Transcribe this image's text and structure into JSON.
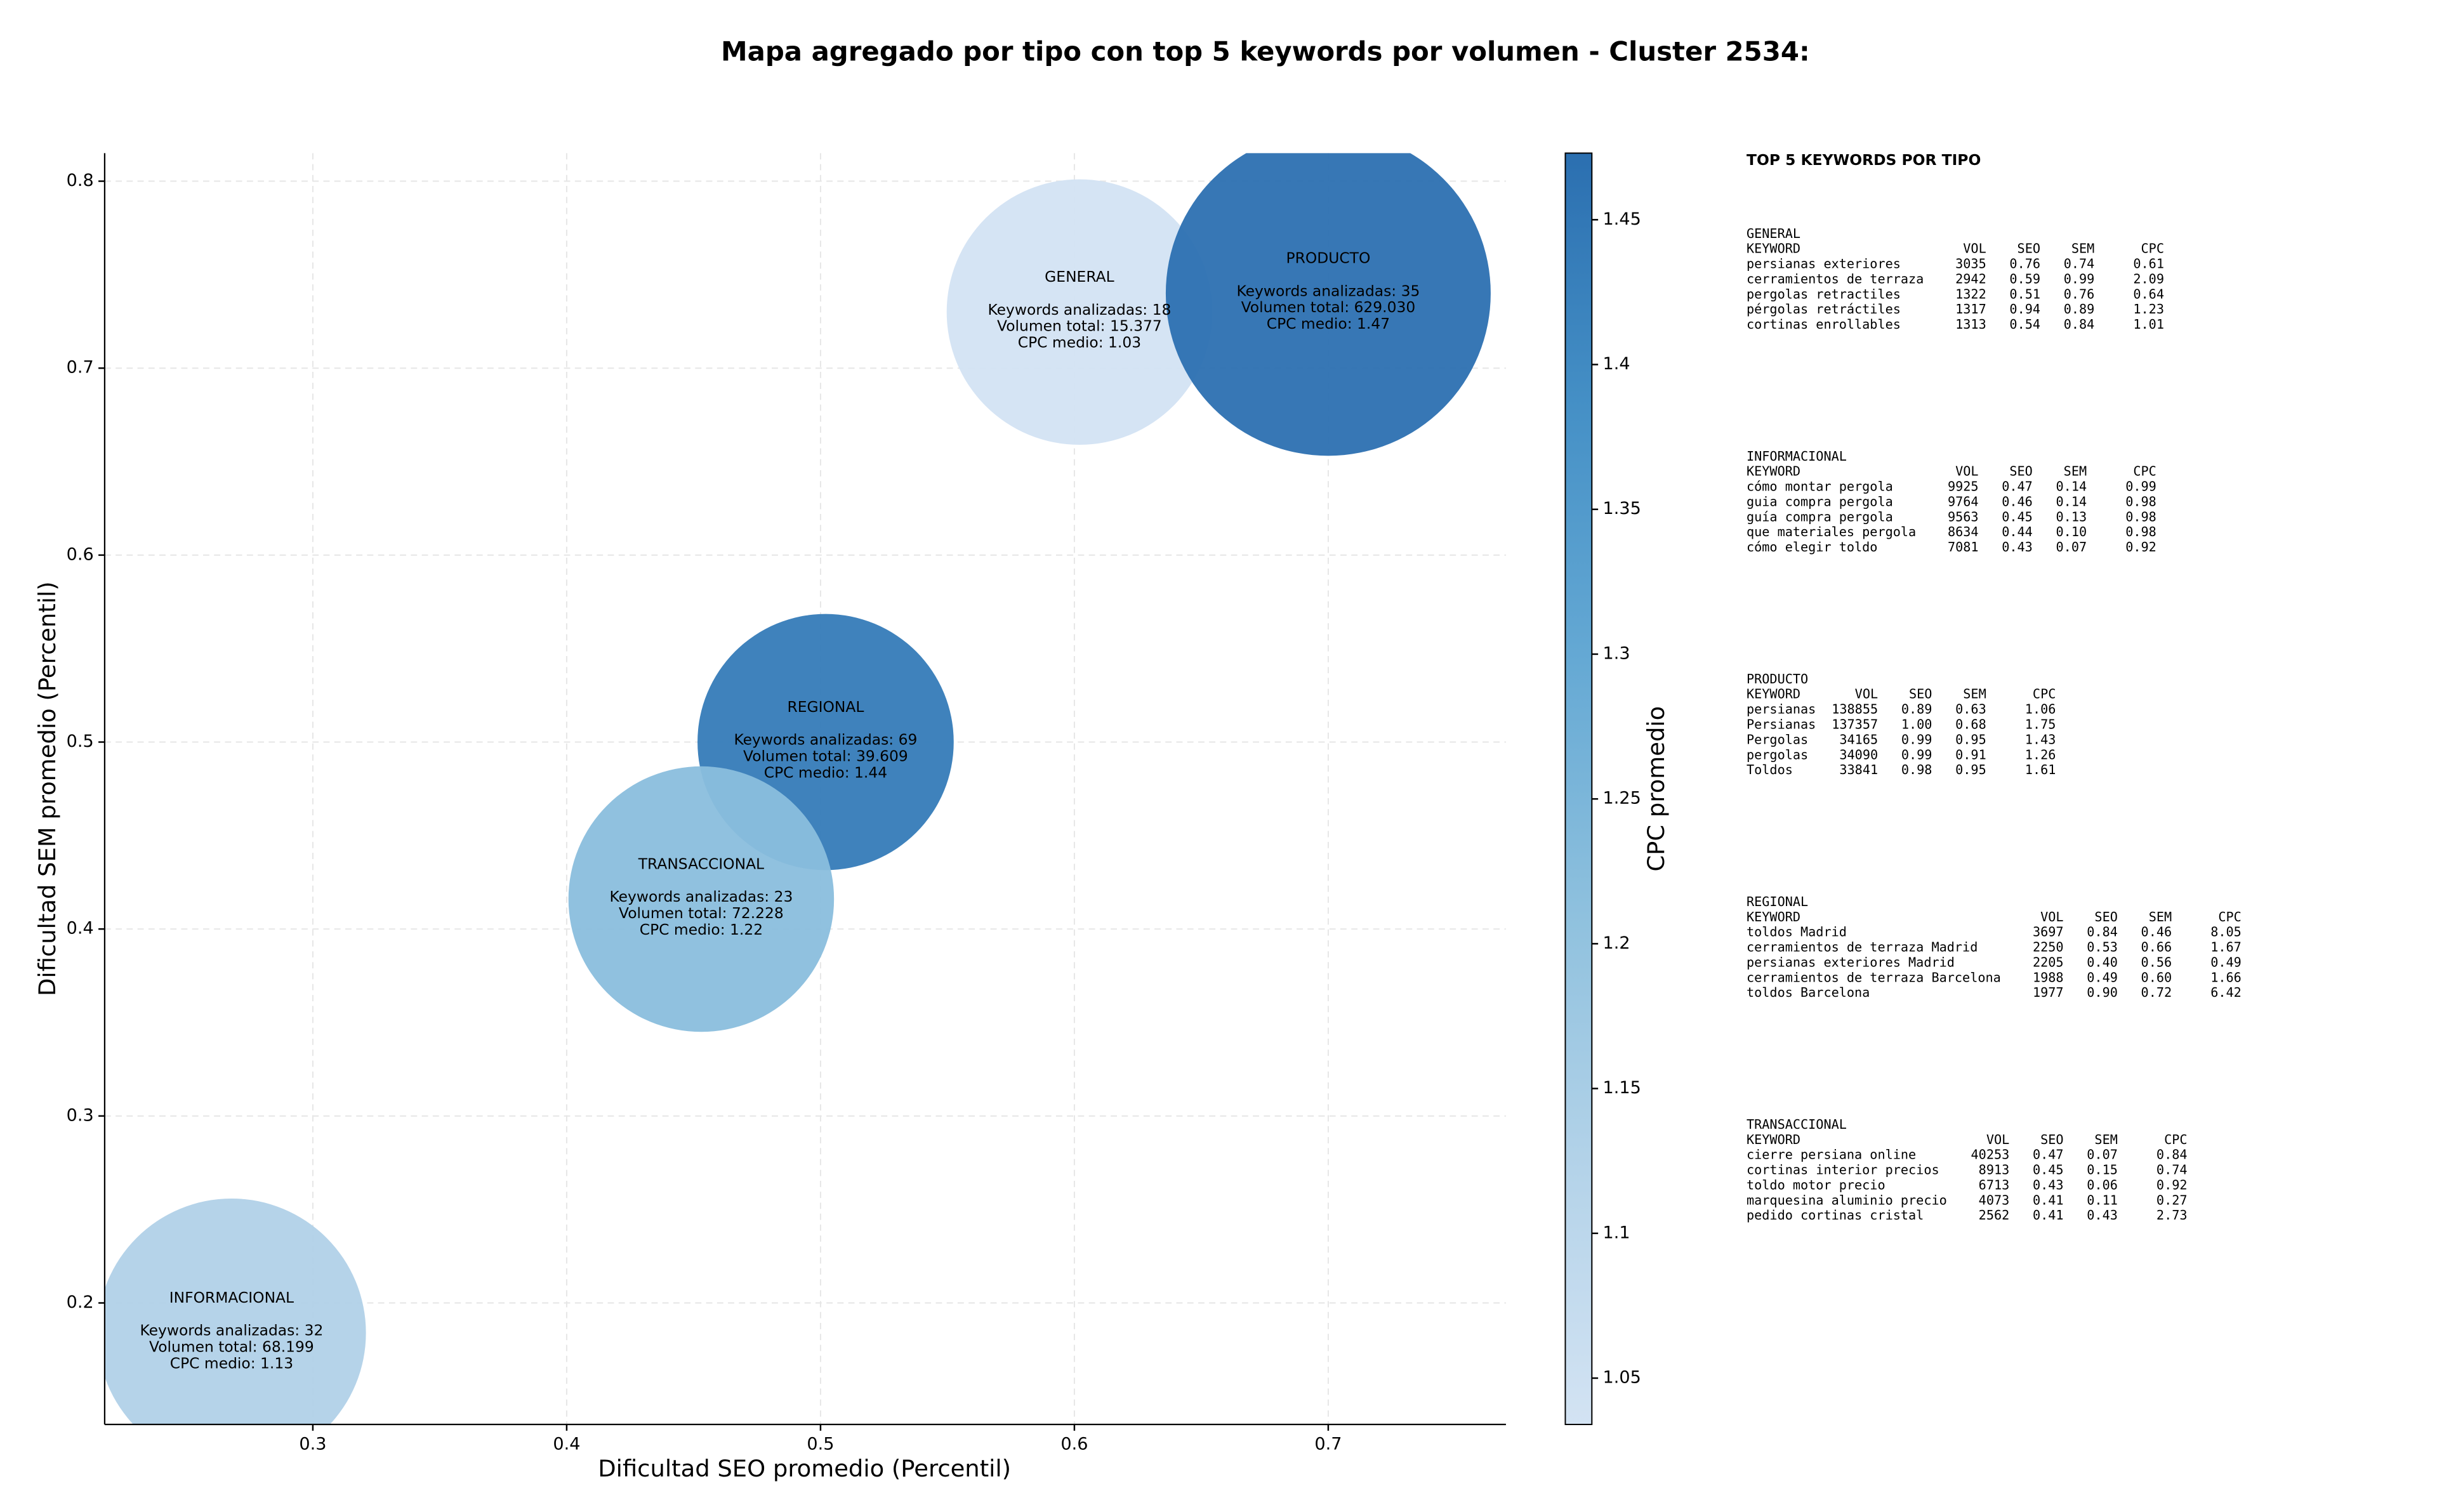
{
  "chart_data": {
    "type": "bubble",
    "title": "Mapa agregado por tipo con top 5 keywords por volumen - Cluster 2534:",
    "xlabel": "Dificultad SEO promedio (Percentil)",
    "ylabel": "Dificultad SEM promedio (Percentil)",
    "xlim": [
      0.218,
      0.77
    ],
    "ylim": [
      0.135,
      0.815
    ],
    "xticks": [
      0.3,
      0.4,
      0.5,
      0.6,
      0.7
    ],
    "yticks": [
      0.2,
      0.3,
      0.4,
      0.5,
      0.6,
      0.7,
      0.8
    ],
    "grid": true,
    "colorbar": {
      "label": "CPC promedio",
      "lim": [
        1.034,
        1.473
      ],
      "ticks": [
        1.05,
        1.1,
        1.15,
        1.2,
        1.25,
        1.3,
        1.35,
        1.4,
        1.45
      ],
      "colormap": [
        "#d3e3f3",
        "#b4d3e9",
        "#8fc1de",
        "#65a9d4",
        "#4590c6",
        "#2b6fb0"
      ]
    },
    "points": [
      {
        "name": "GENERAL",
        "x": 0.602,
        "y": 0.73,
        "size": 85,
        "cpc": 1.03,
        "lines": [
          "Keywords analizadas: 18",
          "Volumen total: 15.377",
          "CPC medio: 1.03"
        ]
      },
      {
        "name": "PRODUCTO",
        "x": 0.7,
        "y": 0.74,
        "size": 104,
        "cpc": 1.47,
        "lines": [
          "Keywords analizadas: 35",
          "Volumen total: 629.030",
          "CPC medio: 1.47"
        ]
      },
      {
        "name": "REGIONAL",
        "x": 0.502,
        "y": 0.5,
        "size": 82,
        "cpc": 1.44,
        "lines": [
          "Keywords analizadas: 69",
          "Volumen total: 39.609",
          "CPC medio: 1.44"
        ]
      },
      {
        "name": "TRANSACCIONAL",
        "x": 0.453,
        "y": 0.416,
        "size": 85,
        "cpc": 1.22,
        "lines": [
          "Keywords analizadas: 23",
          "Volumen total: 72.228",
          "CPC medio: 1.22"
        ]
      },
      {
        "name": "INFORMACIONAL",
        "x": 0.268,
        "y": 0.184,
        "size": 86,
        "cpc": 1.13,
        "lines": [
          "Keywords analizadas: 32",
          "Volumen total: 68.199",
          "CPC medio: 1.13"
        ]
      }
    ],
    "table": {
      "title": "TOP 5 KEYWORDS POR TIPO",
      "header": [
        "KEYWORD",
        "VOL",
        "SEO",
        "SEM",
        "CPC"
      ],
      "groups": [
        {
          "name": "GENERAL",
          "rows": [
            [
              "persianas exteriores",
              "3035",
              "0.76",
              "0.74",
              "0.61"
            ],
            [
              "cerramientos de terraza",
              "2942",
              "0.59",
              "0.99",
              "2.09"
            ],
            [
              "pergolas retractiles",
              "1322",
              "0.51",
              "0.76",
              "0.64"
            ],
            [
              "pérgolas retráctiles",
              "1317",
              "0.94",
              "0.89",
              "1.23"
            ],
            [
              "cortinas enrollables",
              "1313",
              "0.54",
              "0.84",
              "1.01"
            ]
          ]
        },
        {
          "name": "INFORMACIONAL",
          "rows": [
            [
              "cómo montar pergola",
              "9925",
              "0.47",
              "0.14",
              "0.99"
            ],
            [
              "guia compra pergola",
              "9764",
              "0.46",
              "0.14",
              "0.98"
            ],
            [
              "guía compra pergola",
              "9563",
              "0.45",
              "0.13",
              "0.98"
            ],
            [
              "que materiales pergola",
              "8634",
              "0.44",
              "0.10",
              "0.98"
            ],
            [
              "cómo elegir toldo",
              "7081",
              "0.43",
              "0.07",
              "0.92"
            ]
          ]
        },
        {
          "name": "PRODUCTO",
          "rows": [
            [
              "persianas",
              "138855",
              "0.89",
              "0.63",
              "1.06"
            ],
            [
              "Persianas",
              "137357",
              "1.00",
              "0.68",
              "1.75"
            ],
            [
              "Pergolas",
              "34165",
              "0.99",
              "0.95",
              "1.43"
            ],
            [
              "pergolas",
              "34090",
              "0.99",
              "0.91",
              "1.26"
            ],
            [
              "Toldos",
              "33841",
              "0.98",
              "0.95",
              "1.61"
            ]
          ]
        },
        {
          "name": "REGIONAL",
          "rows": [
            [
              "toldos Madrid",
              "3697",
              "0.84",
              "0.46",
              "8.05"
            ],
            [
              "cerramientos de terraza Madrid",
              "2250",
              "0.53",
              "0.66",
              "1.67"
            ],
            [
              "persianas exteriores Madrid",
              "2205",
              "0.40",
              "0.56",
              "0.49"
            ],
            [
              "cerramientos de terraza Barcelona",
              "1988",
              "0.49",
              "0.60",
              "1.66"
            ],
            [
              "toldos Barcelona",
              "1977",
              "0.90",
              "0.72",
              "6.42"
            ]
          ]
        },
        {
          "name": "TRANSACCIONAL",
          "rows": [
            [
              "cierre persiana online",
              "40253",
              "0.47",
              "0.07",
              "0.84"
            ],
            [
              "cortinas interior precios",
              "8913",
              "0.45",
              "0.15",
              "0.74"
            ],
            [
              "toldo motor precio",
              "6713",
              "0.43",
              "0.06",
              "0.92"
            ],
            [
              "marquesina aluminio precio",
              "4073",
              "0.41",
              "0.11",
              "0.27"
            ],
            [
              "pedido cortinas cristal",
              "2562",
              "0.41",
              "0.43",
              "2.73"
            ]
          ]
        }
      ]
    }
  }
}
